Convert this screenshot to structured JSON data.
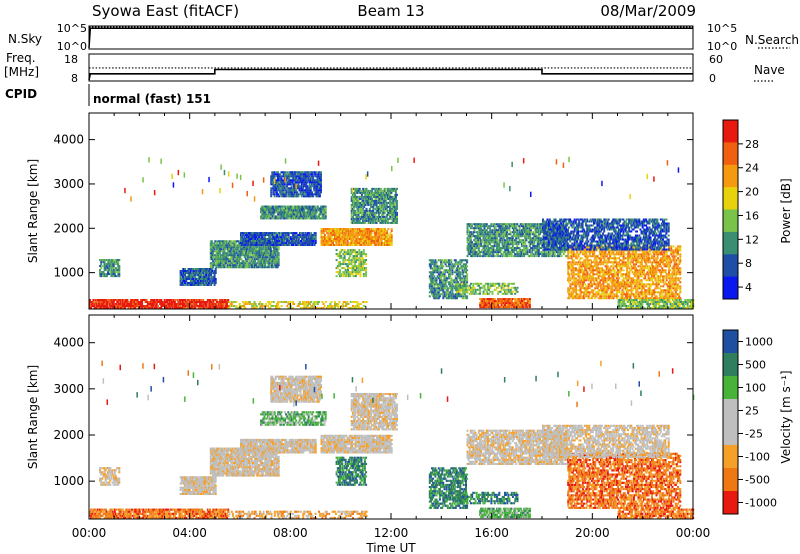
{
  "header": {
    "station": "Syowa East (fitACF)",
    "beam": "Beam 13",
    "date": "08/Mar/2009"
  },
  "colors": {
    "scale": [
      "#0a18f0",
      "#1f4ea8",
      "#3a8f73",
      "#79c34a",
      "#e8d20c",
      "#f59a0f",
      "#f06010",
      "#e81a10"
    ],
    "velocity_scale": [
      "#e81a10",
      "#ef7815",
      "#f6a02a",
      "#bfbfbf",
      "#bfbfbf",
      "#47b33b",
      "#2e7e5f",
      "#1e4fa0"
    ],
    "grey": "#c0c0c0"
  },
  "top_panels": {
    "nsky_label": "N.Sky",
    "nsearch_label": "N.Search",
    "nsky_ticks": [
      "10^5",
      "10^0"
    ],
    "nsearch_ticks": [
      "10^5",
      "10^0"
    ],
    "freq_label_1": "Freq.",
    "freq_label_2": "[MHz]",
    "freq_ticks": [
      "18",
      "8"
    ],
    "nave_label": "Nave",
    "nave_ticks": [
      "60",
      "0"
    ],
    "cpid_label": "CPID",
    "cpid_value": "normal (fast) 151"
  },
  "chart_data": [
    {
      "type": "line",
      "title": "N.Sky / N.Search",
      "x_unit": "hours UT",
      "series": [
        {
          "name": "N.Sky",
          "x": [
            0,
            0.05,
            24
          ],
          "y": [
            1,
            50000,
            50000
          ]
        },
        {
          "name": "N.Search",
          "x": [
            0,
            24
          ],
          "y": [
            100000,
            100000
          ]
        }
      ]
    },
    {
      "type": "line",
      "title": "Frequency / Nave",
      "x_unit": "hours UT",
      "series": [
        {
          "name": "Freq. [MHz]",
          "x": [
            0,
            0.05,
            5.0,
            5.0,
            18.0,
            18.0,
            24
          ],
          "y": [
            8,
            10.5,
            10.5,
            12.2,
            12.2,
            10.5,
            10.5
          ]
        },
        {
          "name": "Nave",
          "x": [
            0,
            24
          ],
          "y": [
            29,
            29
          ]
        }
      ],
      "ylim_left": [
        8,
        18
      ],
      "ylim_right": [
        0,
        60
      ]
    },
    {
      "type": "heatmap",
      "title": "Power [dB]",
      "ylabel": "Slant Range [km]",
      "xlim_hours": [
        0,
        24
      ],
      "ylim_km": [
        180,
        4600
      ],
      "yticks": [
        1000,
        2000,
        3000,
        4000
      ],
      "colorbar_label": "Power [dB]",
      "colorbar_ticks": [
        "28",
        "24",
        "20",
        "16",
        "12",
        "8",
        "4"
      ],
      "regions": [
        {
          "t0": 0.0,
          "t1": 5.5,
          "r0": 180,
          "r1": 380,
          "level": 7,
          "density": 0.8
        },
        {
          "t0": 5.5,
          "t1": 11.0,
          "r0": 180,
          "r1": 320,
          "level": 4,
          "density": 0.4
        },
        {
          "t0": 0.4,
          "t1": 1.2,
          "r0": 900,
          "r1": 1300,
          "level": 2,
          "density": 0.7
        },
        {
          "t0": 3.6,
          "t1": 5.0,
          "r0": 700,
          "r1": 1100,
          "level": 1,
          "density": 0.85
        },
        {
          "t0": 4.8,
          "t1": 7.5,
          "r0": 1100,
          "r1": 1700,
          "level": 2,
          "density": 0.85
        },
        {
          "t0": 6.0,
          "t1": 9.0,
          "r0": 1600,
          "r1": 1900,
          "level": 1,
          "density": 0.85
        },
        {
          "t0": 6.8,
          "t1": 9.4,
          "r0": 2200,
          "r1": 2500,
          "level": 2,
          "density": 0.85
        },
        {
          "t0": 7.2,
          "t1": 9.2,
          "r0": 2700,
          "r1": 3250,
          "level": 1,
          "density": 0.8
        },
        {
          "t0": 9.2,
          "t1": 12.0,
          "r0": 1600,
          "r1": 2000,
          "level": 5,
          "density": 0.85
        },
        {
          "t0": 10.4,
          "t1": 12.2,
          "r0": 2100,
          "r1": 2900,
          "level": 2,
          "density": 0.75
        },
        {
          "t0": 9.8,
          "t1": 11.0,
          "r0": 900,
          "r1": 1500,
          "level": 3,
          "density": 0.6
        },
        {
          "t0": 13.5,
          "t1": 15.0,
          "r0": 400,
          "r1": 1300,
          "level": 2,
          "density": 0.6
        },
        {
          "t0": 14.6,
          "t1": 17.0,
          "r0": 500,
          "r1": 750,
          "level": 3,
          "density": 0.5
        },
        {
          "t0": 15.0,
          "t1": 19.0,
          "r0": 1350,
          "r1": 2100,
          "level": 2,
          "density": 0.7
        },
        {
          "t0": 15.5,
          "t1": 17.5,
          "r0": 200,
          "r1": 420,
          "level": 6,
          "density": 0.85
        },
        {
          "t0": 19.0,
          "t1": 23.5,
          "r0": 400,
          "r1": 1600,
          "level": 5,
          "density": 0.6
        },
        {
          "t0": 18.0,
          "t1": 23.0,
          "r0": 1500,
          "r1": 2200,
          "level": 1,
          "density": 0.6
        },
        {
          "t0": 21.0,
          "t1": 24.0,
          "r0": 180,
          "r1": 400,
          "level": 3,
          "density": 0.7
        }
      ]
    },
    {
      "type": "heatmap",
      "title": "Velocity [m s-1]",
      "ylabel": "Slant Range [km]",
      "xlabel": "Time UT",
      "xlim_hours": [
        0,
        24
      ],
      "xticks": [
        "00:00",
        "04:00",
        "08:00",
        "12:00",
        "16:00",
        "20:00",
        "00:00"
      ],
      "ylim_km": [
        180,
        4600
      ],
      "yticks": [
        1000,
        2000,
        3000,
        4000
      ],
      "colorbar_label": "Velocity  [m s⁻¹]",
      "colorbar_ticks": [
        "1000",
        "500",
        "100",
        "25",
        "-25",
        "-100",
        "-500",
        "-1000"
      ],
      "regions": [
        {
          "t0": 0.0,
          "t1": 5.5,
          "r0": 180,
          "r1": 380,
          "level": 1,
          "density": 0.75
        },
        {
          "t0": 5.5,
          "t1": 11.0,
          "r0": 180,
          "r1": 320,
          "level": 2,
          "density": 0.4
        },
        {
          "t0": 0.4,
          "t1": 1.2,
          "r0": 900,
          "r1": 1300,
          "level": 3,
          "density": 0.6
        },
        {
          "t0": 3.6,
          "t1": 5.0,
          "r0": 700,
          "r1": 1100,
          "level": 3,
          "density": 0.85
        },
        {
          "t0": 4.8,
          "t1": 7.5,
          "r0": 1100,
          "r1": 1700,
          "level": 3,
          "density": 0.85
        },
        {
          "t0": 6.0,
          "t1": 9.0,
          "r0": 1600,
          "r1": 1900,
          "level": 3,
          "density": 0.85
        },
        {
          "t0": 6.8,
          "t1": 9.4,
          "r0": 2200,
          "r1": 2500,
          "level": 5,
          "density": 0.6
        },
        {
          "t0": 7.2,
          "t1": 9.2,
          "r0": 2700,
          "r1": 3250,
          "level": 3,
          "density": 0.8
        },
        {
          "t0": 9.2,
          "t1": 12.0,
          "r0": 1600,
          "r1": 2000,
          "level": 3,
          "density": 0.85
        },
        {
          "t0": 10.4,
          "t1": 12.2,
          "r0": 2100,
          "r1": 2900,
          "level": 3,
          "density": 0.75
        },
        {
          "t0": 9.8,
          "t1": 11.0,
          "r0": 900,
          "r1": 1500,
          "level": 6,
          "density": 0.6
        },
        {
          "t0": 13.5,
          "t1": 15.0,
          "r0": 400,
          "r1": 1300,
          "level": 6,
          "density": 0.6
        },
        {
          "t0": 14.6,
          "t1": 17.0,
          "r0": 500,
          "r1": 750,
          "level": 6,
          "density": 0.5
        },
        {
          "t0": 15.0,
          "t1": 19.0,
          "r0": 1350,
          "r1": 2100,
          "level": 3,
          "density": 0.7
        },
        {
          "t0": 15.5,
          "t1": 17.5,
          "r0": 200,
          "r1": 420,
          "level": 5,
          "density": 0.85
        },
        {
          "t0": 19.0,
          "t1": 23.5,
          "r0": 400,
          "r1": 1600,
          "level": 1,
          "density": 0.6
        },
        {
          "t0": 18.0,
          "t1": 23.0,
          "r0": 1500,
          "r1": 2200,
          "level": 3,
          "density": 0.6
        },
        {
          "t0": 21.0,
          "t1": 24.0,
          "r0": 180,
          "r1": 400,
          "level": 1,
          "density": 0.7
        }
      ]
    }
  ]
}
